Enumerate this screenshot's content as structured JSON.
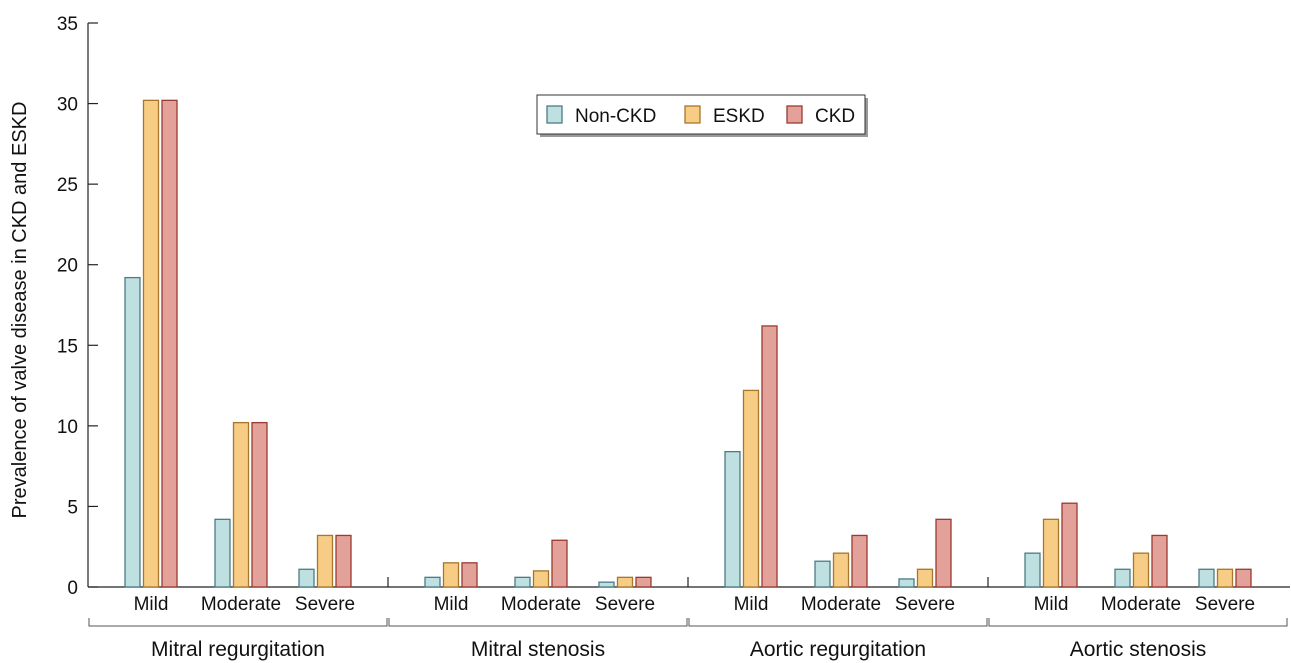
{
  "chart_data": {
    "type": "bar",
    "title": "",
    "ylabel": "Prevalence of valve disease in CKD and ESKD",
    "xlabel": "",
    "ylim": [
      0,
      35
    ],
    "yticks": [
      0,
      5,
      10,
      15,
      20,
      25,
      30,
      35
    ],
    "grid": false,
    "legend_position": "top-center",
    "groups": [
      "Mitral regurgitation",
      "Mitral stenosis",
      "Aortic regurgitation",
      "Aortic stenosis"
    ],
    "subcategories": [
      "Mild",
      "Moderate",
      "Severe"
    ],
    "series": [
      {
        "name": "Non-CKD",
        "color": "#bfe0e0",
        "values": [
          19.2,
          4.2,
          1.1,
          0.6,
          0.6,
          0.3,
          8.4,
          1.6,
          0.5,
          2.1,
          1.1,
          1.1
        ]
      },
      {
        "name": "ESKD",
        "color": "#f7cd86",
        "values": [
          30.2,
          10.2,
          3.2,
          1.5,
          1.0,
          0.6,
          12.2,
          2.1,
          1.1,
          4.2,
          2.1,
          1.1
        ]
      },
      {
        "name": "CKD",
        "color": "#e3a299",
        "values": [
          30.2,
          10.2,
          3.2,
          1.5,
          2.9,
          0.6,
          16.2,
          3.2,
          4.2,
          5.2,
          3.2,
          1.1
        ]
      }
    ],
    "stroke_colors": {
      "Non-CKD": "#4c7b85",
      "ESKD": "#a8752a",
      "CKD": "#9a3a32"
    }
  }
}
